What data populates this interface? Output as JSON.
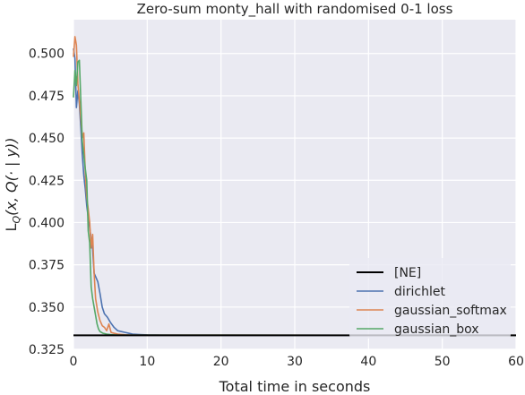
{
  "chart_data": {
    "type": "line",
    "title": "Zero-sum monty_hall with randomised 0-1 loss",
    "xlabel": "Total time in seconds",
    "ylabel": "L_Q(x, Q(· | y))",
    "xlim": [
      0,
      60
    ],
    "ylim": [
      0.325,
      0.52
    ],
    "xticks": [
      0,
      10,
      20,
      30,
      40,
      50,
      60
    ],
    "yticks": [
      0.325,
      0.35,
      0.375,
      0.4,
      0.425,
      0.45,
      0.475,
      0.5
    ],
    "grid": true,
    "legend_position": "lower-right",
    "series": [
      {
        "name": "[NE]",
        "color": "#000000",
        "x": [
          0,
          60
        ],
        "y": [
          0.3333,
          0.3333
        ]
      },
      {
        "name": "dirichlet",
        "color": "#4c72b0",
        "x": [
          0,
          0.2,
          0.4,
          0.6,
          0.8,
          1.0,
          1.2,
          1.4,
          1.6,
          1.8,
          2.0,
          2.2,
          2.4,
          2.6,
          2.8,
          3.0,
          3.3,
          3.6,
          3.9,
          4.2,
          4.6,
          5.0,
          5.5,
          6.0,
          6.5,
          7.0,
          7.5,
          8.0,
          9.0,
          10.0,
          12.0,
          15.0,
          60.0
        ],
        "y": [
          0.503,
          0.497,
          0.468,
          0.478,
          0.47,
          0.456,
          0.44,
          0.428,
          0.42,
          0.41,
          0.403,
          0.397,
          0.39,
          0.384,
          0.37,
          0.368,
          0.365,
          0.358,
          0.35,
          0.346,
          0.344,
          0.341,
          0.338,
          0.336,
          0.3355,
          0.335,
          0.3345,
          0.334,
          0.3337,
          0.3335,
          0.3334,
          0.3333,
          0.3333
        ]
      },
      {
        "name": "gaussian_softmax",
        "color": "#dd8452",
        "x": [
          0,
          0.2,
          0.4,
          0.6,
          0.8,
          1.0,
          1.2,
          1.4,
          1.6,
          1.8,
          2.0,
          2.2,
          2.4,
          2.6,
          2.8,
          3.0,
          3.3,
          3.6,
          3.9,
          4.2,
          4.5,
          4.8,
          5.1,
          5.5,
          6.0,
          7.0,
          8.0,
          60.0
        ],
        "y": [
          0.498,
          0.51,
          0.505,
          0.482,
          0.472,
          0.462,
          0.45,
          0.453,
          0.43,
          0.415,
          0.408,
          0.4,
          0.385,
          0.393,
          0.37,
          0.355,
          0.347,
          0.342,
          0.339,
          0.338,
          0.336,
          0.34,
          0.335,
          0.3345,
          0.334,
          0.3336,
          0.3334,
          0.3333
        ]
      },
      {
        "name": "gaussian_box",
        "color": "#55a868",
        "x": [
          0,
          0.2,
          0.4,
          0.6,
          0.8,
          1.0,
          1.2,
          1.4,
          1.6,
          1.8,
          2.0,
          2.2,
          2.4,
          2.6,
          2.8,
          3.0,
          3.2,
          3.4,
          3.6,
          3.8,
          4.0,
          4.5,
          5.0,
          6.0,
          60.0
        ],
        "y": [
          0.474,
          0.49,
          0.481,
          0.495,
          0.496,
          0.472,
          0.448,
          0.44,
          0.432,
          0.425,
          0.395,
          0.388,
          0.362,
          0.355,
          0.35,
          0.345,
          0.34,
          0.337,
          0.3355,
          0.335,
          0.3345,
          0.334,
          0.3337,
          0.3334,
          0.3333
        ]
      }
    ]
  }
}
